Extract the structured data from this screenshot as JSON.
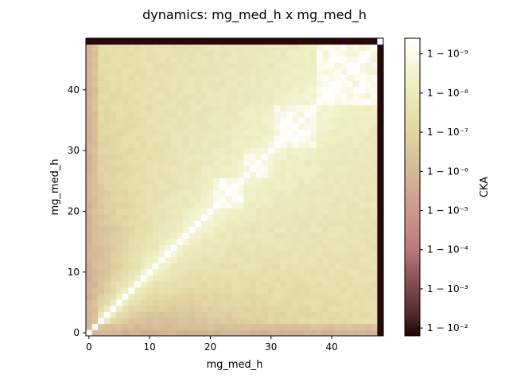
{
  "chart_data": {
    "type": "heatmap",
    "title": "dynamics: mg_med_h x mg_med_h",
    "xlabel": "mg_med_h",
    "ylabel": "mg_med_h",
    "size": 49,
    "xlim": [
      -0.5,
      48.5
    ],
    "ylim": [
      -0.5,
      48.5
    ],
    "x_ticks": [
      0,
      10,
      20,
      30,
      40
    ],
    "y_ticks": [
      0,
      10,
      20,
      30,
      40
    ],
    "x_tick_labels": [
      "0",
      "10",
      "20",
      "30",
      "40"
    ],
    "y_tick_labels": [
      "0",
      "10",
      "20",
      "30",
      "40"
    ],
    "colorbar": {
      "label": "CKA",
      "scale": "log(1 - CKA)",
      "ticks": [
        -9,
        -8,
        -7,
        -6,
        -5,
        -4,
        -3,
        -2
      ],
      "tick_labels": [
        "1 − 10⁻⁹",
        "1 − 10⁻⁸",
        "1 − 10⁻⁷",
        "1 − 10⁻⁶",
        "1 − 10⁻⁵",
        "1 − 10⁻⁴",
        "1 − 10⁻³",
        "1 − 10⁻²"
      ],
      "range_log": [
        -9.4,
        -1.8
      ]
    },
    "value_note": "cells are log10(1 - CKA); diagonal = 1; last row/column near 0.99",
    "block_structure": [
      {
        "range": [
          0,
          48
        ],
        "description": "diagonal white, values decay with distance from diagonal"
      },
      {
        "range": [
          21,
          25
        ],
        "description": "near-white block"
      },
      {
        "range": [
          26,
          29
        ],
        "description": "near-white block"
      },
      {
        "range": [
          31,
          37
        ],
        "description": "near-white block"
      },
      {
        "range": [
          38,
          47
        ],
        "description": "near-white block"
      },
      {
        "range": [
          48,
          48
        ],
        "description": "dark row/column (low similarity)"
      }
    ]
  }
}
